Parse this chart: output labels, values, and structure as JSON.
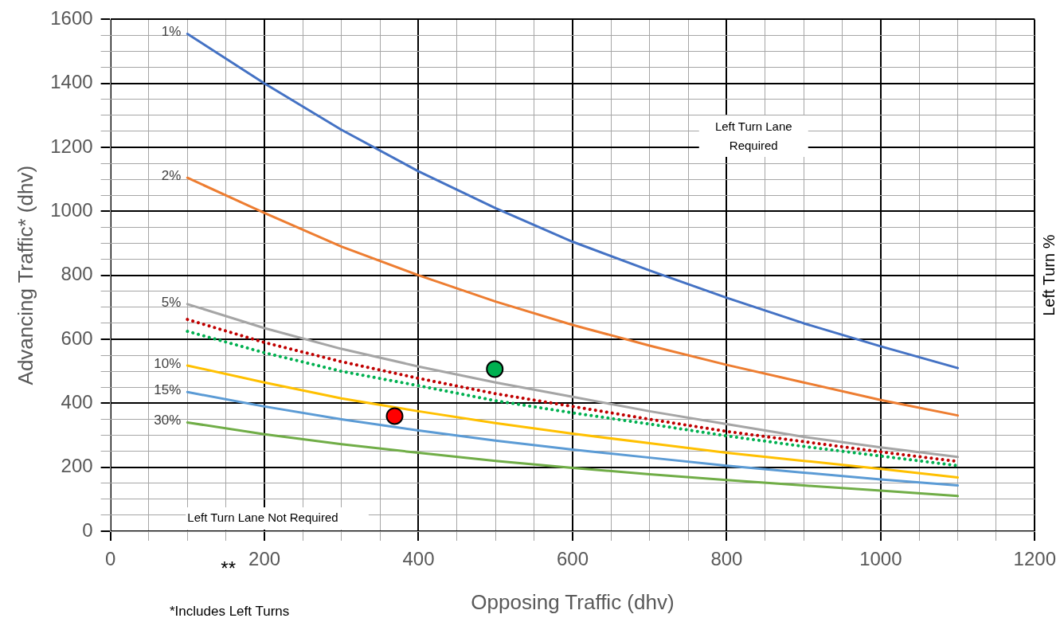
{
  "chart_data": {
    "type": "line",
    "xlabel": "Opposing Traffic (dhv)",
    "ylabel": "Advancing Traffic* (dhv)",
    "y2label": "Left Turn %",
    "x": [
      100,
      200,
      300,
      400,
      500,
      600,
      700,
      800,
      900,
      1000,
      1100
    ],
    "xlim": [
      0,
      1200
    ],
    "ylim": [
      0,
      1600
    ],
    "xticks": [
      0,
      {
        "value": 50,
        "label": null
      },
      {
        "value": 100,
        "label": null
      },
      {
        "value": 150,
        "label": null
      },
      200,
      {
        "value": 250,
        "label": null
      },
      {
        "value": 300,
        "label": null
      },
      {
        "value": 350,
        "label": null
      },
      400,
      {
        "value": 450,
        "label": null
      },
      {
        "value": 500,
        "label": null
      },
      {
        "value": 550,
        "label": null
      },
      600,
      {
        "value": 650,
        "label": null
      },
      {
        "value": 700,
        "label": null
      },
      {
        "value": 750,
        "label": null
      },
      800,
      {
        "value": 850,
        "label": null
      },
      {
        "value": 900,
        "label": null
      },
      {
        "value": 950,
        "label": null
      },
      1000,
      {
        "value": 1050,
        "label": null
      },
      {
        "value": 1100,
        "label": null
      },
      {
        "value": 1150,
        "label": null
      },
      1200
    ],
    "yticks": [
      0,
      {
        "value": 50,
        "label": null
      },
      {
        "value": 100,
        "label": null
      },
      {
        "value": 150,
        "label": null
      },
      200,
      {
        "value": 250,
        "label": null
      },
      {
        "value": 300,
        "label": null
      },
      {
        "value": 350,
        "label": null
      },
      400,
      {
        "value": 450,
        "label": null
      },
      {
        "value": 500,
        "label": null
      },
      {
        "value": 550,
        "label": null
      },
      600,
      {
        "value": 650,
        "label": null
      },
      {
        "value": 700,
        "label": null
      },
      {
        "value": 750,
        "label": null
      },
      800,
      {
        "value": 850,
        "label": null
      },
      {
        "value": 900,
        "label": null
      },
      {
        "value": 950,
        "label": null
      },
      1000,
      {
        "value": 1050,
        "label": null
      },
      {
        "value": 1100,
        "label": null
      },
      {
        "value": 1150,
        "label": null
      },
      1200,
      {
        "value": 1250,
        "label": null
      },
      {
        "value": 1300,
        "label": null
      },
      {
        "value": 1350,
        "label": null
      },
      1400,
      {
        "value": 1450,
        "label": null
      },
      {
        "value": 1500,
        "label": null
      },
      {
        "value": 1550,
        "label": null
      },
      1600
    ],
    "grid": true,
    "marker": "none",
    "line_style": "solid",
    "series": [
      {
        "name": "1%",
        "color": "#4472c4",
        "values": [
          1555,
          1400,
          1255,
          1125,
          1010,
          905,
          815,
          730,
          650,
          578,
          510
        ]
      },
      {
        "name": "2%",
        "color": "#ed7d31",
        "values": [
          1105,
          995,
          890,
          800,
          718,
          645,
          580,
          520,
          465,
          410,
          362
        ]
      },
      {
        "name": "5%",
        "color": "#a5a5a5",
        "values": [
          710,
          635,
          570,
          515,
          465,
          420,
          375,
          335,
          295,
          262,
          232
        ]
      },
      {
        "color": "#c00000",
        "line_style": "dotted",
        "values": [
          662,
          590,
          530,
          478,
          430,
          390,
          350,
          312,
          280,
          248,
          218
        ]
      },
      {
        "color": "#00b050",
        "line_style": "dotted",
        "values": [
          625,
          558,
          500,
          455,
          408,
          370,
          335,
          298,
          265,
          235,
          205
        ]
      },
      {
        "name": "10%",
        "color": "#ffc000",
        "values": [
          518,
          465,
          415,
          375,
          338,
          305,
          275,
          245,
          220,
          195,
          168
        ]
      },
      {
        "name": "15%",
        "color": "#5b9bd5",
        "values": [
          435,
          390,
          350,
          315,
          283,
          255,
          230,
          205,
          183,
          162,
          143
        ]
      },
      {
        "name": "30%",
        "color": "#70ad47",
        "values": [
          340,
          303,
          272,
          245,
          220,
          198,
          178,
          160,
          143,
          127,
          110
        ]
      },
      {
        "type": "scatter",
        "marker": "circle",
        "color": "#ff0000",
        "x": [
          369
        ],
        "values": [
          360
        ]
      },
      {
        "type": "scatter",
        "marker": "circle",
        "color": "#00b050",
        "x": [
          499
        ],
        "values": [
          507
        ]
      }
    ],
    "annotations": [
      "Left Turn Lane Required",
      "Left Turn Lane Not Required",
      "**",
      "*Includes Left Turns"
    ]
  }
}
